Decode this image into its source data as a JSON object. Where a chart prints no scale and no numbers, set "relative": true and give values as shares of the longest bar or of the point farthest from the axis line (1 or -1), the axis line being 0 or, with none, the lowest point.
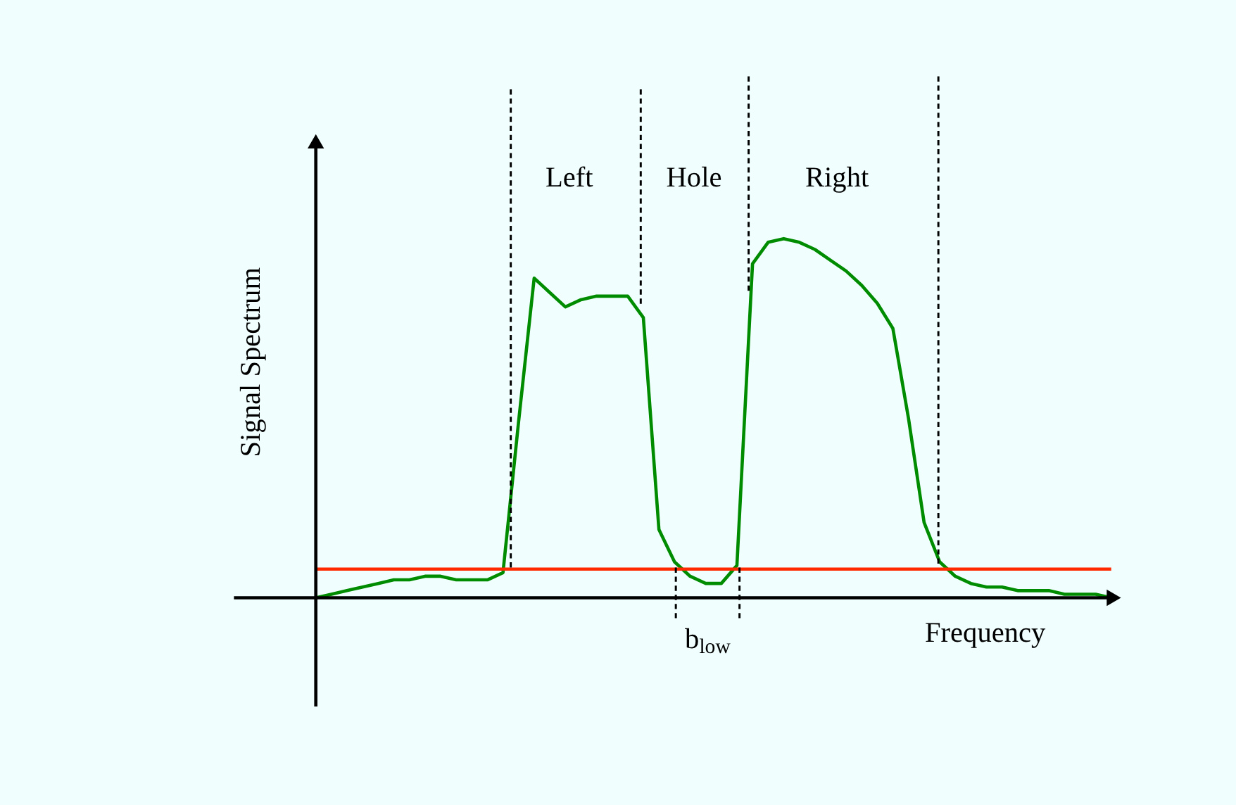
{
  "chart_data": {
    "type": "line",
    "relative": true,
    "xlabel": "Frequency",
    "ylabel": "Signal Spectrum",
    "categories": [
      null,
      null,
      null,
      null,
      null,
      null,
      null,
      null,
      null,
      null,
      null,
      null,
      null,
      null,
      null,
      null,
      null,
      null,
      null,
      null,
      null,
      null,
      null,
      null,
      null,
      null,
      null,
      null,
      null,
      null,
      null,
      null,
      null,
      null,
      null,
      null,
      null,
      null,
      null,
      null,
      null,
      null,
      null,
      null,
      null,
      null,
      null,
      null,
      null,
      null,
      null,
      null
    ],
    "series": [
      {
        "color": "#008c00",
        "values": [
          0,
          0.01,
          0.02,
          0.03,
          0.04,
          0.05,
          0.05,
          0.06,
          0.06,
          0.05,
          0.05,
          0.05,
          0.07,
          0.49,
          0.89,
          0.85,
          0.81,
          0.83,
          0.84,
          0.84,
          0.84,
          0.78,
          0.19,
          0.1,
          0.06,
          0.04,
          0.04,
          0.09,
          0.93,
          0.99,
          1.0,
          0.99,
          0.97,
          0.94,
          0.91,
          0.87,
          0.82,
          0.75,
          0.5,
          0.21,
          0.1,
          0.06,
          0.04,
          0.03,
          0.03,
          0.02,
          0.02,
          0.02,
          0.01,
          0.01,
          0.01,
          0
        ]
      },
      {
        "color": "#ff2a00",
        "values": [
          0.08,
          0.08,
          0.08,
          0.08,
          0.08,
          0.08,
          0.08,
          0.08,
          0.08,
          0.08,
          0.08,
          0.08,
          0.08,
          0.08,
          0.08,
          0.08,
          0.08,
          0.08,
          0.08,
          0.08,
          0.08,
          0.08,
          0.08,
          0.08,
          0.08,
          0.08,
          0.08,
          0.08,
          0.08,
          0.08,
          0.08,
          0.08,
          0.08,
          0.08,
          0.08,
          0.08,
          0.08,
          0.08,
          0.08,
          0.08,
          0.08,
          0.08,
          0.08,
          0.08,
          0.08,
          0.08,
          0.08,
          0.08,
          0.08,
          0.08,
          0.08,
          0.08
        ]
      }
    ],
    "annotations": [
      "Left",
      "Hole",
      "Right",
      "b$_{low}$"
    ]
  }
}
